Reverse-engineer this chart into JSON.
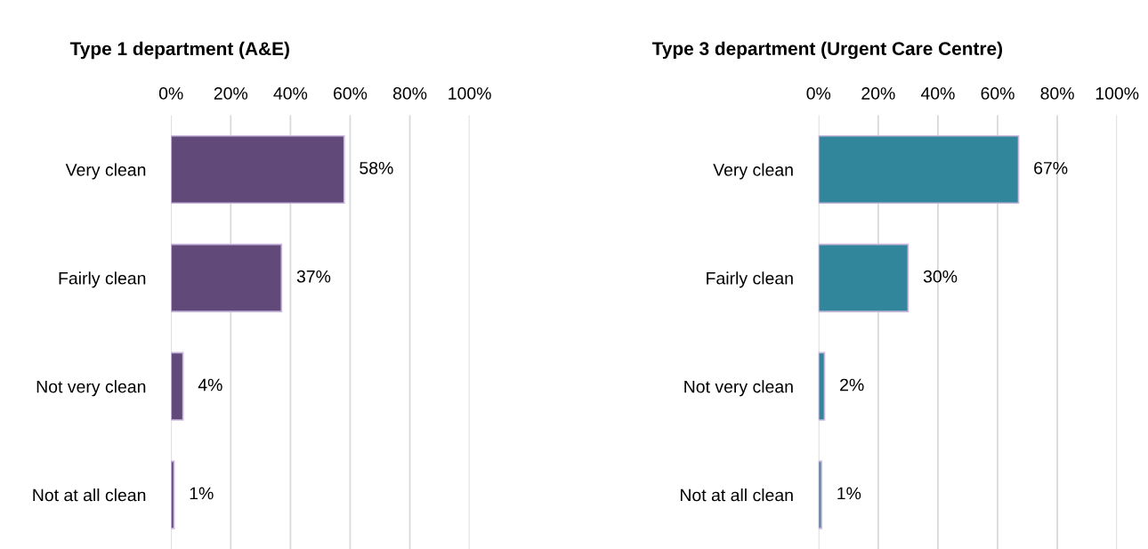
{
  "chart_data": [
    {
      "type": "bar",
      "orientation": "horizontal",
      "title": "Type 1 department (A&E)",
      "categories": [
        "Very clean",
        "Fairly clean",
        "Not very clean",
        "Not at all clean"
      ],
      "values": [
        58,
        37,
        4,
        1
      ],
      "value_labels": [
        "58%",
        "37%",
        "4%",
        "1%"
      ],
      "color": "#614a7a",
      "xlim": [
        0,
        100
      ],
      "xticks": [
        {
          "value": 0,
          "label": "0%"
        },
        {
          "value": 20,
          "label": "20%"
        },
        {
          "value": 40,
          "label": "40%"
        },
        {
          "value": 60,
          "label": "60%"
        },
        {
          "value": 80,
          "label": "80%"
        },
        {
          "value": 100,
          "label": "100%"
        }
      ],
      "grid": "x"
    },
    {
      "type": "bar",
      "orientation": "horizontal",
      "title": "Type 3 department (Urgent Care Centre)",
      "categories": [
        "Very clean",
        "Fairly clean",
        "Not very clean",
        "Not at all clean"
      ],
      "values": [
        67,
        30,
        2,
        1
      ],
      "value_labels": [
        "67%",
        "30%",
        "2%",
        "1%"
      ],
      "color": "#31869b",
      "xlim": [
        0,
        100
      ],
      "xticks": [
        {
          "value": 0,
          "label": "0%"
        },
        {
          "value": 20,
          "label": "20%"
        },
        {
          "value": 40,
          "label": "40%"
        },
        {
          "value": 60,
          "label": "60%"
        },
        {
          "value": 80,
          "label": "80%"
        },
        {
          "value": 100,
          "label": "100%"
        }
      ],
      "grid": "x"
    }
  ]
}
